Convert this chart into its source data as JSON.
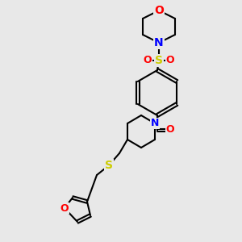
{
  "bg_color": "#e8e8e8",
  "bond_color": "#000000",
  "lw": 1.5,
  "atom_colors": {
    "O": "#ff0000",
    "N": "#0000ff",
    "S": "#cccc00",
    "C": "#000000"
  },
  "font_size": 9
}
